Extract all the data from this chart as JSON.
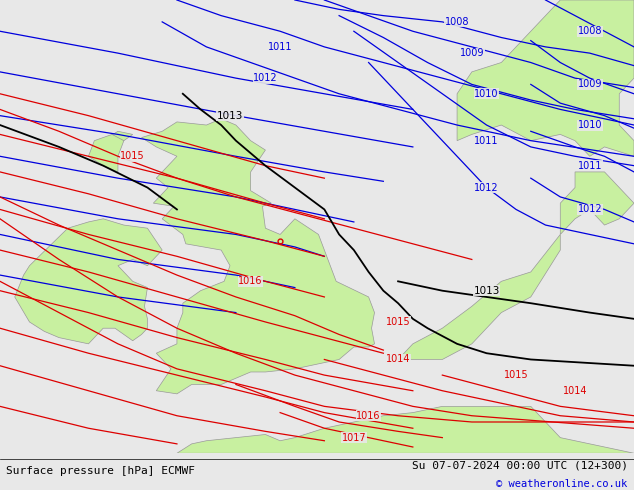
{
  "title_left": "Surface pressure [hPa] ECMWF",
  "title_right": "Su 07-07-2024 00:00 UTC (12+300)",
  "copyright": "© weatheronline.co.uk",
  "bg_color": "#e8e8e8",
  "land_color": "#c8f0a0",
  "border_color": "#999999",
  "blue_color": "#0000dd",
  "red_color": "#dd0000",
  "black_color": "#000000",
  "footer_bg": "#ffffff",
  "footer_fontsize": 8,
  "label_fontsize": 7,
  "figsize": [
    6.34,
    4.9
  ],
  "dpi": 100,
  "xlim": [
    -11.0,
    10.5
  ],
  "ylim": [
    48.0,
    62.5
  ]
}
